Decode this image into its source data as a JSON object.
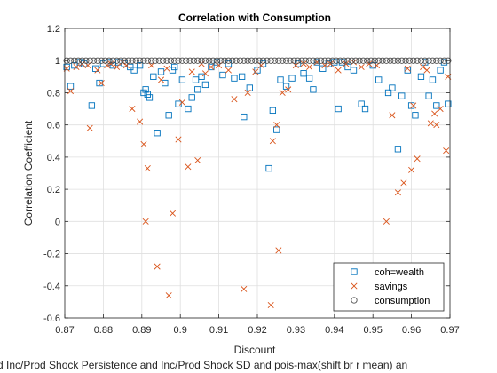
{
  "chart_data": {
    "type": "scatter",
    "title": "Correlation with Consumption",
    "xlabel": "Discount",
    "ylabel": "Correlation Coefficient",
    "caption": "d Inc/Prod Shock Persistence and Inc/Prod Shock SD and pois-max(shift br r mean) an",
    "xlim": [
      0.87,
      0.97
    ],
    "ylim": [
      -0.6,
      1.2
    ],
    "xticks": [
      "0.87",
      "0.88",
      "0.89",
      "0.9",
      "0.91",
      "0.92",
      "0.93",
      "0.94",
      "0.95",
      "0.96",
      "0.97"
    ],
    "yticks": [
      "-0.6",
      "-0.4",
      "-0.2",
      "0",
      "0.2",
      "0.4",
      "0.6",
      "0.8",
      "1",
      "1.2"
    ],
    "grid": true,
    "legend_position": "bottom-right",
    "series": [
      {
        "name": "coh=wealth",
        "marker": "square",
        "color": "#0072BD",
        "points": [
          [
            0.8705,
            0.96
          ],
          [
            0.8715,
            0.84
          ],
          [
            0.8725,
            0.97
          ],
          [
            0.874,
            0.99
          ],
          [
            0.875,
            0.98
          ],
          [
            0.877,
            0.72
          ],
          [
            0.878,
            0.95
          ],
          [
            0.879,
            0.86
          ],
          [
            0.88,
            0.98
          ],
          [
            0.8815,
            0.99
          ],
          [
            0.8825,
            0.97
          ],
          [
            0.884,
            0.99
          ],
          [
            0.8855,
            0.98
          ],
          [
            0.887,
            0.96
          ],
          [
            0.888,
            0.94
          ],
          [
            0.8895,
            0.97
          ],
          [
            0.8905,
            0.8
          ],
          [
            0.891,
            0.82
          ],
          [
            0.8915,
            0.79
          ],
          [
            0.892,
            0.77
          ],
          [
            0.893,
            0.9
          ],
          [
            0.894,
            0.55
          ],
          [
            0.895,
            0.93
          ],
          [
            0.896,
            0.86
          ],
          [
            0.897,
            0.66
          ],
          [
            0.898,
            0.94
          ],
          [
            0.8985,
            0.96
          ],
          [
            0.8995,
            0.73
          ],
          [
            0.9005,
            0.88
          ],
          [
            0.902,
            0.7
          ],
          [
            0.903,
            0.77
          ],
          [
            0.904,
            0.88
          ],
          [
            0.9045,
            0.82
          ],
          [
            0.9055,
            0.9
          ],
          [
            0.9065,
            0.85
          ],
          [
            0.908,
            0.96
          ],
          [
            0.9095,
            0.99
          ],
          [
            0.911,
            0.91
          ],
          [
            0.9125,
            0.98
          ],
          [
            0.914,
            0.89
          ],
          [
            0.916,
            0.9
          ],
          [
            0.9165,
            0.65
          ],
          [
            0.918,
            0.83
          ],
          [
            0.92,
            0.94
          ],
          [
            0.9215,
            0.98
          ],
          [
            0.923,
            0.33
          ],
          [
            0.924,
            0.69
          ],
          [
            0.925,
            0.57
          ],
          [
            0.926,
            0.88
          ],
          [
            0.9275,
            0.84
          ],
          [
            0.929,
            0.89
          ],
          [
            0.9305,
            0.98
          ],
          [
            0.932,
            0.92
          ],
          [
            0.9335,
            0.89
          ],
          [
            0.9345,
            0.82
          ],
          [
            0.9355,
            0.99
          ],
          [
            0.937,
            0.95
          ],
          [
            0.9385,
            0.98
          ],
          [
            0.94,
            0.99
          ],
          [
            0.941,
            0.7
          ],
          [
            0.942,
            0.99
          ],
          [
            0.9435,
            0.96
          ],
          [
            0.945,
            0.94
          ],
          [
            0.947,
            0.73
          ],
          [
            0.948,
            0.7
          ],
          [
            0.95,
            0.97
          ],
          [
            0.9515,
            0.88
          ],
          [
            0.954,
            0.8
          ],
          [
            0.955,
            0.83
          ],
          [
            0.9565,
            0.45
          ],
          [
            0.9575,
            0.78
          ],
          [
            0.959,
            0.94
          ],
          [
            0.96,
            0.72
          ],
          [
            0.961,
            0.66
          ],
          [
            0.9625,
            0.9
          ],
          [
            0.9635,
            0.99
          ],
          [
            0.9645,
            0.78
          ],
          [
            0.9655,
            0.88
          ],
          [
            0.9665,
            0.72
          ],
          [
            0.9675,
            0.94
          ],
          [
            0.9685,
            0.99
          ],
          [
            0.9695,
            0.73
          ]
        ]
      },
      {
        "name": "savings",
        "marker": "x",
        "color": "#D95319",
        "points": [
          [
            0.8705,
            0.95
          ],
          [
            0.8715,
            0.81
          ],
          [
            0.873,
            0.96
          ],
          [
            0.8745,
            0.98
          ],
          [
            0.876,
            0.97
          ],
          [
            0.8765,
            0.58
          ],
          [
            0.8785,
            0.94
          ],
          [
            0.8795,
            0.86
          ],
          [
            0.881,
            0.97
          ],
          [
            0.882,
            0.98
          ],
          [
            0.8835,
            0.96
          ],
          [
            0.885,
            0.99
          ],
          [
            0.886,
            0.97
          ],
          [
            0.8875,
            0.7
          ],
          [
            0.8895,
            0.62
          ],
          [
            0.8905,
            0.48
          ],
          [
            0.891,
            0.0
          ],
          [
            0.8915,
            0.33
          ],
          [
            0.8925,
            0.97
          ],
          [
            0.894,
            -0.28
          ],
          [
            0.895,
            0.88
          ],
          [
            0.8965,
            0.95
          ],
          [
            0.897,
            -0.46
          ],
          [
            0.898,
            0.05
          ],
          [
            0.8995,
            0.51
          ],
          [
            0.9005,
            0.74
          ],
          [
            0.902,
            0.34
          ],
          [
            0.903,
            0.93
          ],
          [
            0.9045,
            0.38
          ],
          [
            0.9055,
            0.98
          ],
          [
            0.9065,
            0.92
          ],
          [
            0.908,
            0.96
          ],
          [
            0.91,
            0.97
          ],
          [
            0.9125,
            0.94
          ],
          [
            0.914,
            0.76
          ],
          [
            0.9165,
            -0.42
          ],
          [
            0.9175,
            0.8
          ],
          [
            0.9195,
            0.93
          ],
          [
            0.921,
            0.97
          ],
          [
            0.9235,
            -0.52
          ],
          [
            0.924,
            0.5
          ],
          [
            0.925,
            0.6
          ],
          [
            0.9255,
            -0.18
          ],
          [
            0.9265,
            0.8
          ],
          [
            0.928,
            0.82
          ],
          [
            0.93,
            0.97
          ],
          [
            0.932,
            0.98
          ],
          [
            0.9335,
            0.96
          ],
          [
            0.9355,
            0.99
          ],
          [
            0.9375,
            0.97
          ],
          [
            0.939,
            0.98
          ],
          [
            0.941,
            0.94
          ],
          [
            0.943,
            0.98
          ],
          [
            0.945,
            0.99
          ],
          [
            0.947,
            0.96
          ],
          [
            0.949,
            0.98
          ],
          [
            0.951,
            0.97
          ],
          [
            0.9535,
            0.0
          ],
          [
            0.955,
            0.66
          ],
          [
            0.9565,
            0.18
          ],
          [
            0.958,
            0.24
          ],
          [
            0.959,
            0.95
          ],
          [
            0.96,
            0.32
          ],
          [
            0.9605,
            0.72
          ],
          [
            0.9615,
            0.39
          ],
          [
            0.963,
            0.96
          ],
          [
            0.964,
            0.94
          ],
          [
            0.965,
            0.61
          ],
          [
            0.966,
            0.67
          ],
          [
            0.9665,
            0.6
          ],
          [
            0.9675,
            0.7
          ],
          [
            0.969,
            0.44
          ],
          [
            0.9695,
            0.9
          ]
        ]
      },
      {
        "name": "consumption",
        "marker": "circle",
        "color": "#4d4d4d",
        "points": [
          [
            0.8705,
            1.0
          ],
          [
            0.8715,
            1.0
          ],
          [
            0.8725,
            1.0
          ],
          [
            0.8735,
            1.0
          ],
          [
            0.8745,
            1.0
          ],
          [
            0.8755,
            1.0
          ],
          [
            0.8765,
            1.0
          ],
          [
            0.8775,
            1.0
          ],
          [
            0.8785,
            1.0
          ],
          [
            0.8795,
            1.0
          ],
          [
            0.8805,
            1.0
          ],
          [
            0.8815,
            1.0
          ],
          [
            0.8825,
            1.0
          ],
          [
            0.8835,
            1.0
          ],
          [
            0.8845,
            1.0
          ],
          [
            0.8855,
            1.0
          ],
          [
            0.8865,
            1.0
          ],
          [
            0.8875,
            1.0
          ],
          [
            0.8885,
            1.0
          ],
          [
            0.8895,
            1.0
          ],
          [
            0.8905,
            1.0
          ],
          [
            0.8915,
            1.0
          ],
          [
            0.8925,
            1.0
          ],
          [
            0.8935,
            1.0
          ],
          [
            0.8945,
            1.0
          ],
          [
            0.8955,
            1.0
          ],
          [
            0.8965,
            1.0
          ],
          [
            0.8975,
            1.0
          ],
          [
            0.8985,
            1.0
          ],
          [
            0.8995,
            1.0
          ],
          [
            0.9005,
            1.0
          ],
          [
            0.9015,
            1.0
          ],
          [
            0.9025,
            1.0
          ],
          [
            0.9035,
            1.0
          ],
          [
            0.9045,
            1.0
          ],
          [
            0.9055,
            1.0
          ],
          [
            0.9065,
            1.0
          ],
          [
            0.9075,
            1.0
          ],
          [
            0.9085,
            1.0
          ],
          [
            0.9095,
            1.0
          ],
          [
            0.9105,
            1.0
          ],
          [
            0.9115,
            1.0
          ],
          [
            0.9125,
            1.0
          ],
          [
            0.9135,
            1.0
          ],
          [
            0.9145,
            1.0
          ],
          [
            0.9155,
            1.0
          ],
          [
            0.9165,
            1.0
          ],
          [
            0.9175,
            1.0
          ],
          [
            0.9185,
            1.0
          ],
          [
            0.9195,
            1.0
          ],
          [
            0.9205,
            1.0
          ],
          [
            0.9215,
            1.0
          ],
          [
            0.9225,
            1.0
          ],
          [
            0.9235,
            1.0
          ],
          [
            0.9245,
            1.0
          ],
          [
            0.9255,
            1.0
          ],
          [
            0.9265,
            1.0
          ],
          [
            0.9275,
            1.0
          ],
          [
            0.9285,
            1.0
          ],
          [
            0.9295,
            1.0
          ],
          [
            0.9305,
            1.0
          ],
          [
            0.9315,
            1.0
          ],
          [
            0.9325,
            1.0
          ],
          [
            0.9335,
            1.0
          ],
          [
            0.9345,
            1.0
          ],
          [
            0.9355,
            1.0
          ],
          [
            0.9365,
            1.0
          ],
          [
            0.9375,
            1.0
          ],
          [
            0.9385,
            1.0
          ],
          [
            0.9395,
            1.0
          ],
          [
            0.9405,
            1.0
          ],
          [
            0.9415,
            1.0
          ],
          [
            0.9425,
            1.0
          ],
          [
            0.9435,
            1.0
          ],
          [
            0.9445,
            1.0
          ],
          [
            0.9455,
            1.0
          ],
          [
            0.9465,
            1.0
          ],
          [
            0.9475,
            1.0
          ],
          [
            0.9485,
            1.0
          ],
          [
            0.9495,
            1.0
          ],
          [
            0.9505,
            1.0
          ],
          [
            0.9515,
            1.0
          ],
          [
            0.9525,
            1.0
          ],
          [
            0.9535,
            1.0
          ],
          [
            0.9545,
            1.0
          ],
          [
            0.9555,
            1.0
          ],
          [
            0.9565,
            1.0
          ],
          [
            0.9575,
            1.0
          ],
          [
            0.9585,
            1.0
          ],
          [
            0.9595,
            1.0
          ],
          [
            0.9605,
            1.0
          ],
          [
            0.9615,
            1.0
          ],
          [
            0.9625,
            1.0
          ],
          [
            0.9635,
            1.0
          ],
          [
            0.9645,
            1.0
          ],
          [
            0.9655,
            1.0
          ],
          [
            0.9665,
            1.0
          ],
          [
            0.9675,
            1.0
          ],
          [
            0.9685,
            1.0
          ],
          [
            0.9695,
            1.0
          ]
        ]
      }
    ]
  }
}
